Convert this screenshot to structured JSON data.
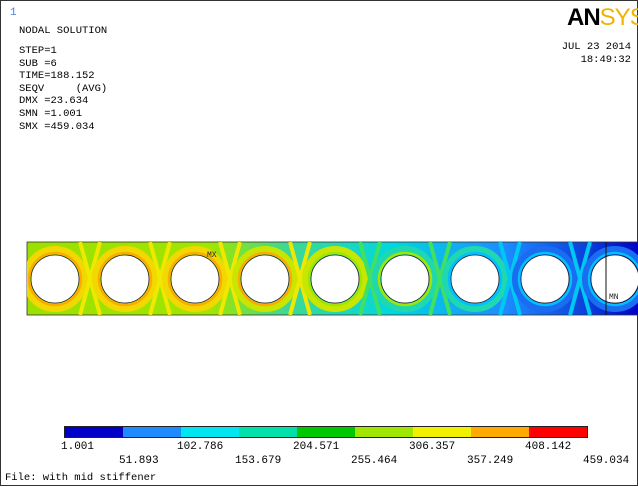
{
  "window_number": "1",
  "header": {
    "title": "NODAL SOLUTION",
    "info_lines": [
      "STEP=1",
      "SUB =6",
      "TIME=188.152",
      "SEQV     (AVG)",
      "DMX =23.634",
      "SMN =1.001",
      "SMX =459.034"
    ]
  },
  "logo": {
    "part1": "AN",
    "part2": "SYS"
  },
  "date": "JUL 23 2014",
  "time": "18:49:32",
  "markers": {
    "max": "MX",
    "min": "MN"
  },
  "legend": {
    "colors": [
      "#0000c8",
      "#1e8cff",
      "#00e6f0",
      "#00e0aa",
      "#00c800",
      "#a0e600",
      "#f0f000",
      "#ffaa00",
      "#ff0000"
    ],
    "labels_upper": [
      "1.001",
      "102.786",
      "204.571",
      "306.357",
      "408.142"
    ],
    "labels_lower": [
      "51.893",
      "153.679",
      "255.464",
      "357.249",
      "459.034"
    ]
  },
  "file_label": "File: with mid stiffener"
}
